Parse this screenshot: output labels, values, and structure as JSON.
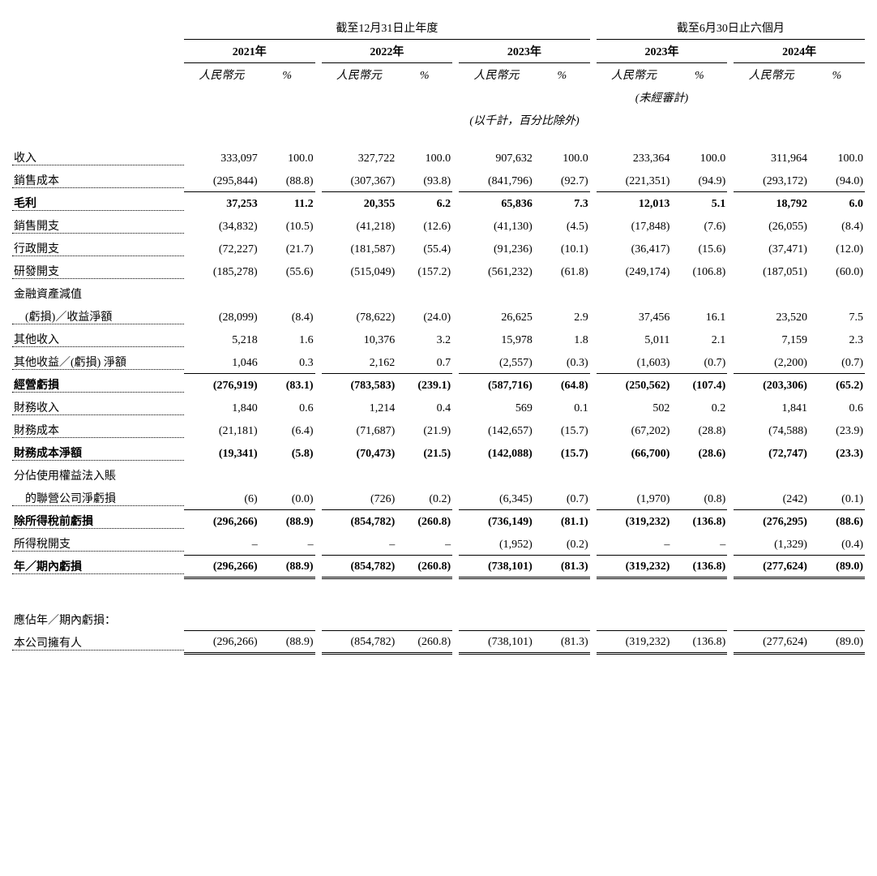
{
  "headers": {
    "group1": "截至12月31日止年度",
    "group2": "截至6月30日止六個月",
    "years": [
      "2021年",
      "2022年",
      "2023年",
      "2023年",
      "2024年"
    ],
    "sub1": "人民幣元",
    "sub2": "%",
    "unaudited": "(未經審計)",
    "unit_note": "(以千計，百分比除外)"
  },
  "rows": [
    {
      "label": "收入",
      "dots": true,
      "bold": false,
      "vals": [
        "333,097",
        "100.0",
        "327,722",
        "100.0",
        "907,632",
        "100.0",
        "233,364",
        "100.0",
        "311,964",
        "100.0"
      ],
      "thin": false
    },
    {
      "label": "銷售成本",
      "dots": true,
      "bold": false,
      "vals": [
        "(295,844)",
        "(88.8)",
        "(307,367)",
        "(93.8)",
        "(841,796)",
        "(92.7)",
        "(221,351)",
        "(94.9)",
        "(293,172)",
        "(94.0)"
      ],
      "thin": true
    },
    {
      "label": "毛利",
      "dots": true,
      "bold": true,
      "vals": [
        "37,253",
        "11.2",
        "20,355",
        "6.2",
        "65,836",
        "7.3",
        "12,013",
        "5.1",
        "18,792",
        "6.0"
      ],
      "thin": false
    },
    {
      "label": "銷售開支",
      "dots": true,
      "bold": false,
      "vals": [
        "(34,832)",
        "(10.5)",
        "(41,218)",
        "(12.6)",
        "(41,130)",
        "(4.5)",
        "(17,848)",
        "(7.6)",
        "(26,055)",
        "(8.4)"
      ],
      "thin": false
    },
    {
      "label": "行政開支",
      "dots": true,
      "bold": false,
      "vals": [
        "(72,227)",
        "(21.7)",
        "(181,587)",
        "(55.4)",
        "(91,236)",
        "(10.1)",
        "(36,417)",
        "(15.6)",
        "(37,471)",
        "(12.0)"
      ],
      "thin": false
    },
    {
      "label": "研發開支",
      "dots": true,
      "bold": false,
      "vals": [
        "(185,278)",
        "(55.6)",
        "(515,049)",
        "(157.2)",
        "(561,232)",
        "(61.8)",
        "(249,174)",
        "(106.8)",
        "(187,051)",
        "(60.0)"
      ],
      "thin": false
    },
    {
      "label": "金融資產減值",
      "dots": false,
      "bold": false,
      "vals": [
        "",
        "",
        "",
        "",
        "",
        "",
        "",
        "",
        "",
        " "
      ],
      "thin": false,
      "nofill": true
    },
    {
      "label": "　(虧損)／收益淨額",
      "dots": true,
      "bold": false,
      "vals": [
        "(28,099)",
        "(8.4)",
        "(78,622)",
        "(24.0)",
        "26,625",
        "2.9",
        "37,456",
        "16.1",
        "23,520",
        "7.5"
      ],
      "thin": false
    },
    {
      "label": "其他收入",
      "dots": true,
      "bold": false,
      "vals": [
        "5,218",
        "1.6",
        "10,376",
        "3.2",
        "15,978",
        "1.8",
        "5,011",
        "2.1",
        "7,159",
        "2.3"
      ],
      "thin": false
    },
    {
      "label": "其他收益／(虧損) 淨額",
      "dots": true,
      "bold": false,
      "vals": [
        "1,046",
        "0.3",
        "2,162",
        "0.7",
        "(2,557)",
        "(0.3)",
        "(1,603)",
        "(0.7)",
        "(2,200)",
        "(0.7)"
      ],
      "thin": true
    },
    {
      "label": "經營虧損",
      "dots": true,
      "bold": true,
      "vals": [
        "(276,919)",
        "(83.1)",
        "(783,583)",
        "(239.1)",
        "(587,716)",
        "(64.8)",
        "(250,562)",
        "(107.4)",
        "(203,306)",
        "(65.2)"
      ],
      "thin": false
    },
    {
      "label": "財務收入",
      "dots": true,
      "bold": false,
      "vals": [
        "1,840",
        "0.6",
        "1,214",
        "0.4",
        "569",
        "0.1",
        "502",
        "0.2",
        "1,841",
        "0.6"
      ],
      "thin": false
    },
    {
      "label": "財務成本",
      "dots": true,
      "bold": false,
      "vals": [
        "(21,181)",
        "(6.4)",
        "(71,687)",
        "(21.9)",
        "(142,657)",
        "(15.7)",
        "(67,202)",
        "(28.8)",
        "(74,588)",
        "(23.9)"
      ],
      "thin": false
    },
    {
      "label": "財務成本淨額",
      "dots": true,
      "bold": true,
      "vals": [
        "(19,341)",
        "(5.8)",
        "(70,473)",
        "(21.5)",
        "(142,088)",
        "(15.7)",
        "(66,700)",
        "(28.6)",
        "(72,747)",
        "(23.3)"
      ],
      "thin": false
    },
    {
      "label": "分佔使用權益法入賬",
      "dots": false,
      "bold": false,
      "vals": [
        "",
        "",
        "",
        "",
        "",
        "",
        "",
        "",
        "",
        " "
      ],
      "thin": false,
      "nofill": true
    },
    {
      "label": "　的聯營公司淨虧損",
      "dots": true,
      "bold": false,
      "vals": [
        "(6)",
        "(0.0)",
        "(726)",
        "(0.2)",
        "(6,345)",
        "(0.7)",
        "(1,970)",
        "(0.8)",
        "(242)",
        "(0.1)"
      ],
      "thin": true
    },
    {
      "label": "除所得稅前虧損",
      "dots": true,
      "bold": true,
      "vals": [
        "(296,266)",
        "(88.9)",
        "(854,782)",
        "(260.8)",
        "(736,149)",
        "(81.1)",
        "(319,232)",
        "(136.8)",
        "(276,295)",
        "(88.6)"
      ],
      "thin": false
    },
    {
      "label": "所得稅開支",
      "dots": true,
      "bold": false,
      "vals": [
        "–",
        "–",
        "–",
        "–",
        "(1,952)",
        "(0.2)",
        "–",
        "–",
        "(1,329)",
        "(0.4)"
      ],
      "thin": true
    },
    {
      "label": "年／期內虧損",
      "dots": true,
      "bold": true,
      "vals": [
        "(296,266)",
        "(88.9)",
        "(854,782)",
        "(260.8)",
        "(738,101)",
        "(81.3)",
        "(319,232)",
        "(136.8)",
        "(277,624)",
        "(89.0)"
      ],
      "dbl": true
    }
  ],
  "attr_header": "應佔年／期內虧損：",
  "attr_row": {
    "label": "本公司擁有人",
    "dots": true,
    "bold": false,
    "vals": [
      "(296,266)",
      "(88.9)",
      "(854,782)",
      "(260.8)",
      "(738,101)",
      "(81.3)",
      "(319,232)",
      "(136.8)",
      "(277,624)",
      "(89.0)"
    ],
    "dbl": true
  },
  "style": {
    "col_widths": {
      "label": 160,
      "rmb": 68,
      "pct": 50,
      "gap": 6
    }
  }
}
